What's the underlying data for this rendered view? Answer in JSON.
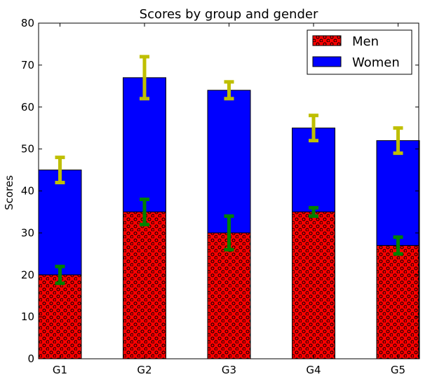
{
  "chart_data": {
    "type": "bar",
    "stacked": true,
    "title": "Scores by group and gender",
    "xlabel": "",
    "ylabel": "Scores",
    "ylim": [
      0,
      80
    ],
    "yticks": [
      0,
      10,
      20,
      30,
      40,
      50,
      60,
      70,
      80
    ],
    "categories": [
      "G1",
      "G2",
      "G3",
      "G4",
      "G5"
    ],
    "legend_position": "top-right",
    "series": [
      {
        "name": "Men",
        "values": [
          20,
          35,
          30,
          35,
          27
        ],
        "errors": [
          2,
          3,
          4,
          1,
          2
        ],
        "color": "#ff0000",
        "hatch": "circles",
        "error_color": "#008000"
      },
      {
        "name": "Women",
        "values": [
          25,
          32,
          34,
          20,
          25
        ],
        "errors": [
          3,
          5,
          2,
          3,
          3
        ],
        "color": "#0000ff",
        "error_color": "#bfbf00"
      }
    ]
  }
}
